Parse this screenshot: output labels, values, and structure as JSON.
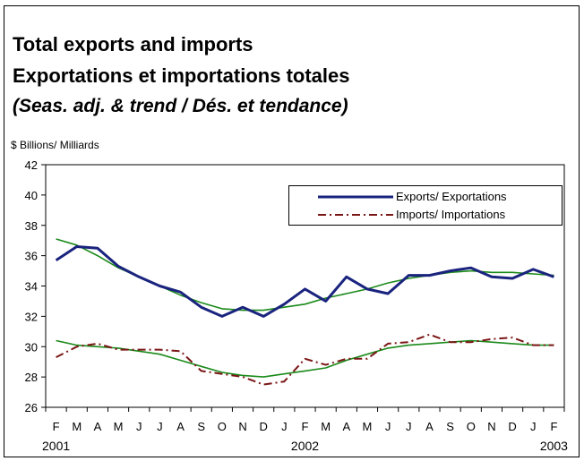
{
  "title_line1": "Total exports and imports",
  "title_line2": "Exportations et importations totales",
  "title_line3": "(Seas. adj. & trend / Dés. et tendance)",
  "unit_label": "$ Billions/ Milliards",
  "colors": {
    "exports": "#1a237e",
    "imports": "#7b1616",
    "trend": "#1a8a1a"
  },
  "chart_data": {
    "type": "line",
    "categories": [
      "F",
      "M",
      "A",
      "M",
      "J",
      "J",
      "A",
      "S",
      "O",
      "N",
      "D",
      "J",
      "F",
      "M",
      "A",
      "M",
      "J",
      "J",
      "A",
      "S",
      "O",
      "N",
      "D",
      "J",
      "F"
    ],
    "year_labels": [
      "2001",
      "2002",
      "2003"
    ],
    "ylim": [
      26,
      42
    ],
    "yticks": [
      26,
      28,
      30,
      32,
      34,
      36,
      38,
      40,
      42
    ],
    "legend_position": "top-right",
    "series": [
      {
        "name": "Exports/ Exportations",
        "style": "solid-thick",
        "values": [
          35.7,
          36.6,
          36.5,
          35.3,
          34.6,
          34.0,
          33.6,
          32.6,
          32.0,
          32.6,
          32.0,
          32.8,
          33.8,
          33.0,
          34.6,
          33.8,
          33.5,
          34.7,
          34.7,
          35.0,
          35.2,
          34.6,
          34.5,
          35.1,
          34.6
        ]
      },
      {
        "name": "Imports/ Importations",
        "style": "dash-dot",
        "values": [
          29.3,
          30.0,
          30.2,
          29.8,
          29.8,
          29.8,
          29.7,
          28.4,
          28.2,
          28.0,
          27.5,
          27.7,
          29.2,
          28.8,
          29.2,
          29.2,
          30.2,
          30.3,
          30.8,
          30.3,
          30.3,
          30.5,
          30.6,
          30.1,
          30.1
        ]
      },
      {
        "name": "",
        "style": "trend",
        "values": [
          37.1,
          36.7,
          36.0,
          35.2,
          34.6,
          34.0,
          33.4,
          32.9,
          32.5,
          32.4,
          32.4,
          32.6,
          32.8,
          33.2,
          33.5,
          33.8,
          34.2,
          34.5,
          34.7,
          34.9,
          35.0,
          34.9,
          34.9,
          34.8,
          34.7
        ]
      },
      {
        "name": "",
        "style": "trend",
        "values": [
          30.4,
          30.1,
          30.0,
          29.9,
          29.7,
          29.5,
          29.1,
          28.7,
          28.3,
          28.1,
          28.0,
          28.2,
          28.4,
          28.6,
          29.1,
          29.5,
          29.9,
          30.1,
          30.2,
          30.3,
          30.4,
          30.3,
          30.2,
          30.1,
          30.1
        ]
      }
    ]
  }
}
